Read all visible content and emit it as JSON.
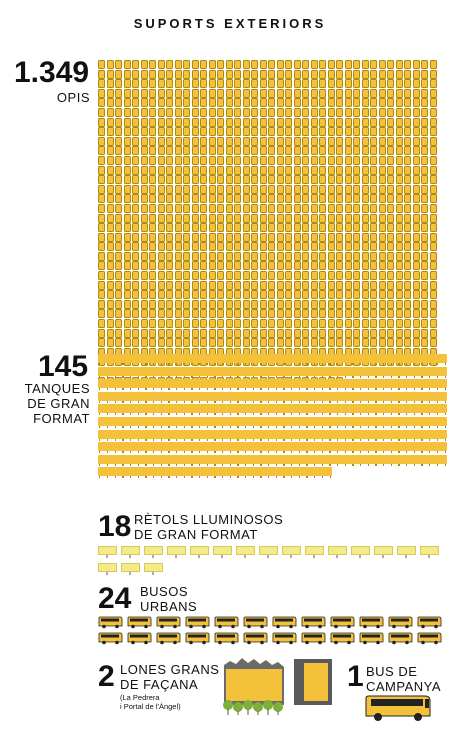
{
  "title": "SUPORTS EXTERIORS",
  "opis": {
    "number": "1.349",
    "label": "OPIS",
    "count": 1349,
    "color": "#f3c23a"
  },
  "tanques": {
    "number": "145",
    "label_lines": [
      "TANQUES",
      "DE GRAN",
      "FORMAT"
    ],
    "count": 145,
    "color": "#f3c23a"
  },
  "retols": {
    "number": "18",
    "label_lines": [
      "RÈTOLS LLUMINOSOS",
      "DE GRAN FORMAT"
    ],
    "count": 18,
    "color": "#f4e98b"
  },
  "busos": {
    "number": "24",
    "label_lines": [
      "BUSOS",
      "URBANS"
    ],
    "count": 24
  },
  "lones": {
    "number": "2",
    "label_lines": [
      "LONES GRANS",
      "DE FAÇANA"
    ],
    "note_lines": [
      "(La Pedrera",
      "i Portal de l'Àngel)"
    ]
  },
  "bus_campanya": {
    "number": "1",
    "label_lines": [
      "BUS DE",
      "CAMPANYA"
    ]
  }
}
